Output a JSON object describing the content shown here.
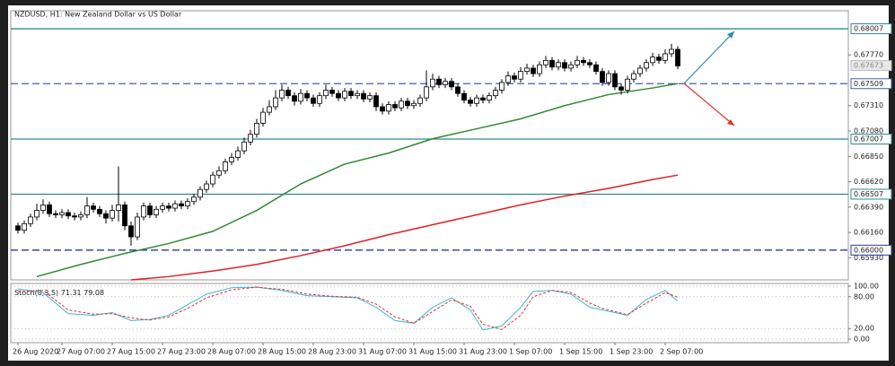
{
  "chart_data": [
    {
      "type": "candlestick",
      "title": "NZDUSD, H1:  New Zealand Dollar vs US Dollar",
      "categories": [
        "26 Aug 2020",
        null,
        null,
        null,
        null,
        null,
        null,
        "27 Aug 07:00",
        null,
        null,
        null,
        null,
        null,
        null,
        null,
        "27 Aug 15:00",
        null,
        null,
        null,
        null,
        null,
        null,
        null,
        "27 Aug 23:00",
        null,
        null,
        null,
        null,
        null,
        null,
        null,
        "28 Aug 07:00",
        null,
        null,
        null,
        null,
        null,
        null,
        null,
        "28 Aug 15:00",
        null,
        null,
        null,
        null,
        null,
        null,
        null,
        "28 Aug 23:00",
        null,
        null,
        null,
        null,
        null,
        null,
        null,
        "31 Aug 07:00",
        null,
        null,
        null,
        null,
        null,
        null,
        null,
        "31 Aug 15:00",
        null,
        null,
        null,
        null,
        null,
        null,
        null,
        "31 Aug 23:00",
        null,
        null,
        null,
        null,
        null,
        null,
        null,
        "1 Sep 07:00",
        null,
        null,
        null,
        null,
        null,
        null,
        null,
        "1 Sep 15:00",
        null,
        null,
        null,
        null,
        null,
        null,
        null,
        "1 Sep 23:00",
        null,
        null,
        null,
        null,
        null,
        null,
        null,
        "2 Sep 07:00",
        null,
        null
      ],
      "open": [
        0.6622,
        0.6618,
        0.6624,
        0.663,
        0.6636,
        0.6641,
        0.6633,
        0.6632,
        0.6634,
        0.6631,
        0.663,
        0.6632,
        0.664,
        0.6637,
        0.6633,
        0.6629,
        0.6636,
        0.6641,
        0.6622,
        0.6612,
        0.663,
        0.664,
        0.6632,
        0.6637,
        0.664,
        0.6638,
        0.6642,
        0.664,
        0.6644,
        0.6648,
        0.6655,
        0.666,
        0.6668,
        0.6672,
        0.668,
        0.6684,
        0.669,
        0.6698,
        0.6705,
        0.6715,
        0.6725,
        0.673,
        0.6738,
        0.6745,
        0.674,
        0.6735,
        0.6742,
        0.6738,
        0.6733,
        0.674,
        0.6745,
        0.6742,
        0.6738,
        0.6744,
        0.674,
        0.6742,
        0.6737,
        0.674,
        0.673,
        0.6726,
        0.6732,
        0.6729,
        0.6735,
        0.6731,
        0.6733,
        0.6738,
        0.6748,
        0.6755,
        0.675,
        0.6753,
        0.6748,
        0.6742,
        0.6736,
        0.6733,
        0.6738,
        0.6736,
        0.674,
        0.6745,
        0.6752,
        0.6758,
        0.6755,
        0.6762,
        0.6765,
        0.676,
        0.6768,
        0.6772,
        0.6766,
        0.677,
        0.6765,
        0.6768,
        0.6772,
        0.677,
        0.6768,
        0.6762,
        0.6752,
        0.676,
        0.6748,
        0.6745,
        0.6755,
        0.676,
        0.6765,
        0.677,
        0.6775,
        0.6772,
        0.6778,
        0.6782
      ],
      "high": [
        0.6625,
        0.6627,
        0.6633,
        0.6642,
        0.6646,
        0.6644,
        0.6636,
        0.6637,
        0.6637,
        0.6634,
        0.6635,
        0.6648,
        0.6643,
        0.664,
        0.6636,
        0.6641,
        0.6676,
        0.6644,
        0.6626,
        0.6634,
        0.6643,
        0.6643,
        0.664,
        0.6643,
        0.6643,
        0.6645,
        0.6645,
        0.6647,
        0.6651,
        0.6658,
        0.6663,
        0.6671,
        0.6676,
        0.6683,
        0.6688,
        0.6694,
        0.6702,
        0.6709,
        0.6719,
        0.6729,
        0.6736,
        0.6745,
        0.675,
        0.6748,
        0.6743,
        0.6746,
        0.6745,
        0.6741,
        0.6743,
        0.675,
        0.6748,
        0.6745,
        0.6747,
        0.6747,
        0.6745,
        0.6745,
        0.6743,
        0.6743,
        0.6733,
        0.6735,
        0.6735,
        0.6738,
        0.6738,
        0.6736,
        0.6741,
        0.6763,
        0.676,
        0.6758,
        0.6756,
        0.6756,
        0.6751,
        0.6745,
        0.6739,
        0.6741,
        0.6741,
        0.6743,
        0.6748,
        0.6755,
        0.6762,
        0.6761,
        0.6766,
        0.6769,
        0.6768,
        0.6771,
        0.6776,
        0.6775,
        0.6773,
        0.6773,
        0.6771,
        0.6776,
        0.6775,
        0.6773,
        0.6771,
        0.6765,
        0.6763,
        0.6763,
        0.6751,
        0.6758,
        0.6763,
        0.6768,
        0.6773,
        0.6779,
        0.6778,
        0.6782,
        0.6787,
        0.6785
      ],
      "low": [
        0.6615,
        0.6615,
        0.6621,
        0.6627,
        0.6633,
        0.663,
        0.6629,
        0.6629,
        0.6628,
        0.6627,
        0.6627,
        0.6629,
        0.6634,
        0.663,
        0.6624,
        0.6626,
        0.6626,
        0.6618,
        0.6604,
        0.6609,
        0.6627,
        0.6629,
        0.6629,
        0.6634,
        0.6635,
        0.6635,
        0.6637,
        0.6637,
        0.6641,
        0.6645,
        0.6652,
        0.6657,
        0.6665,
        0.6669,
        0.6677,
        0.6681,
        0.6687,
        0.6695,
        0.6702,
        0.6712,
        0.6722,
        0.6727,
        0.6735,
        0.6737,
        0.6731,
        0.6732,
        0.6735,
        0.673,
        0.673,
        0.6737,
        0.6739,
        0.6735,
        0.6735,
        0.6737,
        0.6737,
        0.6734,
        0.6734,
        0.6726,
        0.6723,
        0.6723,
        0.6726,
        0.6726,
        0.6728,
        0.6728,
        0.673,
        0.6735,
        0.6745,
        0.6747,
        0.6747,
        0.6745,
        0.6739,
        0.6733,
        0.673,
        0.673,
        0.6733,
        0.6733,
        0.6737,
        0.6742,
        0.6749,
        0.6752,
        0.6752,
        0.6759,
        0.6757,
        0.6757,
        0.6765,
        0.6763,
        0.6763,
        0.6762,
        0.6762,
        0.6765,
        0.6767,
        0.6765,
        0.6759,
        0.6749,
        0.6749,
        0.6745,
        0.6741,
        0.6742,
        0.6752,
        0.6757,
        0.6762,
        0.6767,
        0.6769,
        0.6769,
        0.6775,
        0.6764
      ],
      "close": [
        0.6618,
        0.6624,
        0.663,
        0.6636,
        0.6641,
        0.6633,
        0.6632,
        0.6634,
        0.6631,
        0.663,
        0.6632,
        0.664,
        0.6637,
        0.6633,
        0.6629,
        0.6636,
        0.6641,
        0.6622,
        0.6612,
        0.663,
        0.664,
        0.6632,
        0.6637,
        0.664,
        0.6638,
        0.6642,
        0.664,
        0.6644,
        0.6648,
        0.6655,
        0.666,
        0.6668,
        0.6672,
        0.668,
        0.6684,
        0.669,
        0.6698,
        0.6705,
        0.6715,
        0.6725,
        0.673,
        0.6738,
        0.6745,
        0.674,
        0.6735,
        0.6742,
        0.6738,
        0.6733,
        0.674,
        0.6745,
        0.6742,
        0.6738,
        0.6744,
        0.674,
        0.6742,
        0.6737,
        0.674,
        0.673,
        0.6726,
        0.6732,
        0.6729,
        0.6735,
        0.6731,
        0.6733,
        0.6738,
        0.6748,
        0.6755,
        0.675,
        0.6753,
        0.6748,
        0.6742,
        0.6736,
        0.6733,
        0.6738,
        0.6736,
        0.674,
        0.6745,
        0.6752,
        0.6758,
        0.6755,
        0.6762,
        0.6765,
        0.676,
        0.6768,
        0.6772,
        0.6766,
        0.677,
        0.6765,
        0.6768,
        0.6772,
        0.677,
        0.6768,
        0.6762,
        0.6752,
        0.676,
        0.6748,
        0.6745,
        0.6755,
        0.676,
        0.6765,
        0.677,
        0.6775,
        0.6772,
        0.6778,
        0.6782,
        0.6767
      ],
      "lines": [
        {
          "color": "#2e8b2e",
          "x": [
            3,
            10,
            17,
            24,
            31,
            38,
            45,
            52,
            59,
            66,
            73,
            80,
            87,
            94,
            101,
            105
          ],
          "values": [
            0.6576,
            0.6587,
            0.6597,
            0.6606,
            0.6617,
            0.6636,
            0.666,
            0.6678,
            0.6688,
            0.6701,
            0.671,
            0.6719,
            0.6731,
            0.6741,
            0.6747,
            0.6751
          ]
        },
        {
          "color": "#e02020",
          "x": [
            18,
            24,
            31,
            38,
            45,
            52,
            59,
            66,
            73,
            80,
            87,
            94,
            101,
            105
          ],
          "values": [
            0.6573,
            0.6576,
            0.6581,
            0.6587,
            0.6595,
            0.6604,
            0.6614,
            0.6623,
            0.6632,
            0.6641,
            0.6649,
            0.6656,
            0.6664,
            0.6668
          ]
        }
      ],
      "levels": [
        {
          "value": 0.68007,
          "label": "0.68007",
          "color": "#2e8b8b",
          "dashed": false
        },
        {
          "value": 0.67509,
          "label": "0.67509",
          "color": "#4a5ab0",
          "dashed": true
        },
        {
          "value": 0.67007,
          "label": "0.67007",
          "color": "#2e8b8b",
          "dashed": false
        },
        {
          "value": 0.66507,
          "label": "0.66507",
          "color": "#2e8b8b",
          "dashed": false
        },
        {
          "value": 0.66,
          "label": "0.66000",
          "color": "#2a3a9a",
          "dashed": true
        }
      ],
      "current": {
        "value": 0.67673,
        "label": "0.67673"
      },
      "ylim": [
        0.6573,
        0.6817
      ],
      "yticks": [
        {
          "value": 0.6777,
          "label": "0.67770"
        },
        {
          "value": 0.6731,
          "label": "0.67310"
        },
        {
          "value": 0.6708,
          "label": "0.67080"
        },
        {
          "value": 0.6685,
          "label": "0.66850"
        },
        {
          "value": 0.6662,
          "label": "0.66620"
        },
        {
          "value": 0.6639,
          "label": "0.66390"
        },
        {
          "value": 0.6616,
          "label": "0.66160"
        },
        {
          "value": 0.6593,
          "label": "0.65930"
        }
      ]
    },
    {
      "type": "line",
      "title": "Stoch(8,3,5)",
      "series": [
        {
          "color": "#3cb8cc",
          "dashed": false,
          "x": [
            0,
            4,
            8,
            12,
            15,
            18,
            21,
            24,
            27,
            30,
            34,
            38,
            42,
            46,
            50,
            54,
            57,
            60,
            63,
            66,
            69,
            72,
            74,
            77,
            80,
            82,
            85,
            88,
            91,
            93,
            95,
            97,
            100,
            103,
            105
          ],
          "values": [
            95,
            88,
            48,
            45,
            50,
            35,
            37,
            45,
            65,
            85,
            97,
            98,
            92,
            82,
            80,
            78,
            60,
            35,
            30,
            60,
            78,
            55,
            17,
            25,
            60,
            90,
            92,
            85,
            60,
            55,
            50,
            45,
            75,
            92,
            71.31
          ]
        },
        {
          "color": "#e03030",
          "dashed": true,
          "x": [
            0,
            4,
            8,
            12,
            15,
            18,
            21,
            24,
            27,
            30,
            34,
            38,
            42,
            46,
            50,
            54,
            57,
            60,
            63,
            66,
            69,
            72,
            74,
            77,
            80,
            82,
            85,
            88,
            91,
            93,
            95,
            97,
            100,
            103,
            105
          ],
          "values": [
            90,
            92,
            55,
            47,
            48,
            40,
            36,
            42,
            58,
            78,
            93,
            98,
            94,
            85,
            81,
            79,
            66,
            42,
            30,
            52,
            74,
            62,
            28,
            18,
            45,
            80,
            92,
            88,
            68,
            58,
            52,
            46,
            68,
            88,
            79.08
          ]
        }
      ],
      "ylim": [
        0,
        100
      ],
      "yticks": [
        {
          "value": 100,
          "label": "100.00"
        },
        {
          "value": 80,
          "label": "80.00"
        },
        {
          "value": 20,
          "label": "20.00"
        },
        {
          "value": 0,
          "label": "0.00"
        }
      ],
      "grid": true
    }
  ]
}
